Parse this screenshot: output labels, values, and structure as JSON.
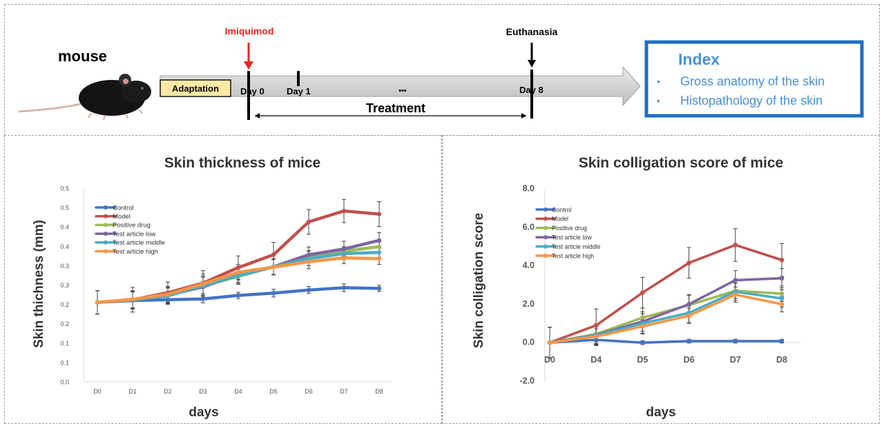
{
  "timeline": {
    "mouse_label": "mouse",
    "adaptation_label": "Adaptation",
    "imiquimod_label": "Imiquimod",
    "euthanasia_label": "Euthanasia",
    "day0": "Day 0",
    "day1": "Day 1",
    "ellipsis": "•••",
    "day8": "Day 8",
    "treatment_label": "Treatment",
    "index_title": "Index",
    "index_items": [
      "Gross anatomy of the skin",
      "Histopathology of the skin"
    ],
    "colors": {
      "imiquimod": "#e8251f",
      "index_border": "#1d6fc2",
      "index_text": "#4a90d0",
      "adaptation_fill": "#fde8a6"
    }
  },
  "chart_data": [
    {
      "type": "line",
      "title": "Skin thickness of mice",
      "xlabel": "days",
      "ylabel": "Skin thichness (mm)",
      "categories": [
        "D0",
        "D1",
        "D2",
        "D3",
        "D4",
        "D5",
        "D6",
        "D7",
        "D8"
      ],
      "ylim": [
        0.0,
        0.5
      ],
      "ytick_values": [
        0.0,
        0.05,
        0.1,
        0.15,
        0.2,
        0.25,
        0.3,
        0.35,
        0.4,
        0.45,
        0.5
      ],
      "ytick_labels": [
        "0.0",
        "0.1",
        "0.1",
        "0.2",
        "0.2",
        "0.3",
        "0.3",
        "0.4",
        "0.4",
        "0.5",
        "0.5"
      ],
      "legend_position": "top-left",
      "series": [
        {
          "name": "Control",
          "color": "#4472c4",
          "values": [
            0.205,
            0.21,
            0.212,
            0.214,
            0.223,
            0.229,
            0.237,
            0.243,
            0.241
          ],
          "errors": [
            0.03,
            0.022,
            0.012,
            0.01,
            0.008,
            0.01,
            0.009,
            0.01,
            0.008
          ]
        },
        {
          "name": "Model",
          "color": "#c0504d",
          "values": [
            0.205,
            0.212,
            0.23,
            0.255,
            0.295,
            0.328,
            0.413,
            0.441,
            0.433
          ],
          "errors": [
            0.03,
            0.032,
            0.028,
            0.032,
            0.03,
            0.032,
            0.032,
            0.03,
            0.032
          ]
        },
        {
          "name": "Positive drug",
          "color": "#9bbb59",
          "values": [
            0.205,
            0.212,
            0.222,
            0.248,
            0.272,
            0.297,
            0.324,
            0.337,
            0.349
          ],
          "errors": [
            0.03,
            0.022,
            0.02,
            0.025,
            0.02,
            0.02,
            0.015,
            0.012,
            0.012
          ]
        },
        {
          "name": "Test article low",
          "color": "#8064a2",
          "values": [
            0.205,
            0.212,
            0.224,
            0.245,
            0.277,
            0.297,
            0.328,
            0.343,
            0.365
          ],
          "errors": [
            0.03,
            0.022,
            0.02,
            0.025,
            0.02,
            0.02,
            0.02,
            0.02,
            0.02
          ]
        },
        {
          "name": "Test article middle",
          "color": "#4bacc6",
          "values": [
            0.205,
            0.212,
            0.222,
            0.248,
            0.274,
            0.297,
            0.318,
            0.331,
            0.334
          ],
          "errors": [
            0.03,
            0.022,
            0.02,
            0.025,
            0.02,
            0.02,
            0.018,
            0.015,
            0.012
          ]
        },
        {
          "name": "Test article high",
          "color": "#f79646",
          "values": [
            0.205,
            0.213,
            0.226,
            0.253,
            0.283,
            0.296,
            0.31,
            0.32,
            0.318
          ],
          "errors": [
            0.03,
            0.022,
            0.02,
            0.025,
            0.02,
            0.02,
            0.018,
            0.015,
            0.015
          ]
        }
      ]
    },
    {
      "type": "line",
      "title": "Skin colligation score of mice",
      "xlabel": "days",
      "ylabel": "Skin colligation score",
      "categories": [
        "D0",
        "D4",
        "D5",
        "D6",
        "D7",
        "D8"
      ],
      "ylim": [
        -2.0,
        8.0
      ],
      "ytick_values": [
        -2.0,
        0.0,
        2.0,
        4.0,
        6.0,
        8.0
      ],
      "ytick_labels": [
        "-2.0",
        "0.0",
        "2.0",
        "4.0",
        "6.0",
        "8.0"
      ],
      "legend_position": "top-left",
      "series": [
        {
          "name": "Control",
          "color": "#4472c4",
          "values": [
            0.0,
            0.15,
            0.0,
            0.08,
            0.08,
            0.08
          ],
          "errors": [
            0.8,
            0.3,
            0.1,
            0.1,
            0.1,
            0.1
          ]
        },
        {
          "name": "Model",
          "color": "#c0504d",
          "values": [
            0.0,
            0.9,
            2.6,
            4.15,
            5.08,
            4.3
          ],
          "errors": [
            0.8,
            0.85,
            0.8,
            0.8,
            0.85,
            0.85
          ]
        },
        {
          "name": "Positive drug",
          "color": "#9bbb59",
          "values": [
            0.0,
            0.45,
            1.3,
            1.95,
            2.7,
            2.55
          ],
          "errors": [
            0.8,
            0.5,
            0.5,
            0.5,
            0.4,
            0.4
          ]
        },
        {
          "name": "Test article low",
          "color": "#8064a2",
          "values": [
            0.0,
            0.4,
            1.1,
            2.0,
            3.25,
            3.35
          ],
          "errors": [
            0.8,
            0.5,
            0.5,
            0.5,
            0.5,
            0.5
          ]
        },
        {
          "name": "Test article middle",
          "color": "#4bacc6",
          "values": [
            0.0,
            0.38,
            1.0,
            1.55,
            2.65,
            2.3
          ],
          "errors": [
            0.8,
            0.5,
            0.5,
            0.5,
            0.45,
            0.45
          ]
        },
        {
          "name": "Test article high",
          "color": "#f79646",
          "values": [
            0.0,
            0.32,
            0.85,
            1.4,
            2.5,
            2.0
          ],
          "errors": [
            0.8,
            0.4,
            0.4,
            0.4,
            0.4,
            0.4
          ]
        }
      ]
    }
  ]
}
